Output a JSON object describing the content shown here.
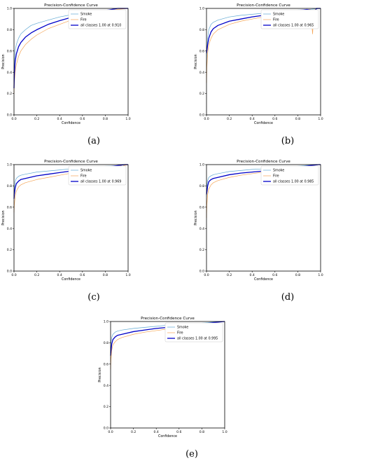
{
  "colors": {
    "smoke": "#5fa8d3",
    "fire": "#f5a455",
    "all": "#0000c8"
  },
  "chart_data": [
    {
      "type": "line",
      "label": "(a)",
      "title": "Precision-Confidence Curve",
      "xlabel": "Confidence",
      "ylabel": "Precision",
      "xlim": [
        0,
        1
      ],
      "ylim": [
        0,
        1
      ],
      "xticks": [
        "0.0",
        "0.2",
        "0.4",
        "0.6",
        "0.8",
        "1.0"
      ],
      "yticks": [
        "0.0",
        "0.2",
        "0.4",
        "0.6",
        "0.8",
        "1.0"
      ],
      "grid": false,
      "legend_position": "top-right",
      "series": [
        {
          "name": "Smoke",
          "color": "#5fa8d3",
          "width": 0.7,
          "x": [
            0,
            0.003,
            0.01,
            0.02,
            0.04,
            0.06,
            0.1,
            0.15,
            0.2,
            0.3,
            0.4,
            0.5,
            0.6,
            0.7,
            0.8,
            0.86,
            0.9,
            1.0
          ],
          "y": [
            0.3,
            0.5,
            0.6,
            0.66,
            0.72,
            0.76,
            0.8,
            0.84,
            0.86,
            0.89,
            0.92,
            0.94,
            0.955,
            0.97,
            0.98,
            0.99,
            1.0,
            1.0
          ]
        },
        {
          "name": "Fire",
          "color": "#f5a455",
          "width": 0.7,
          "x": [
            0,
            0.003,
            0.01,
            0.02,
            0.04,
            0.06,
            0.1,
            0.15,
            0.2,
            0.3,
            0.4,
            0.5,
            0.6,
            0.7,
            0.8,
            0.9,
            1.0
          ],
          "y": [
            0.2,
            0.3,
            0.4,
            0.47,
            0.55,
            0.6,
            0.66,
            0.71,
            0.75,
            0.81,
            0.85,
            0.89,
            0.92,
            0.95,
            0.97,
            0.99,
            1.0
          ]
        },
        {
          "name": "all classes 1.00 at 0.910",
          "color": "#0000c8",
          "width": 1.3,
          "x": [
            0,
            0.003,
            0.01,
            0.02,
            0.04,
            0.06,
            0.1,
            0.15,
            0.2,
            0.3,
            0.4,
            0.5,
            0.6,
            0.7,
            0.8,
            0.91,
            1.0
          ],
          "y": [
            0.25,
            0.38,
            0.5,
            0.57,
            0.64,
            0.68,
            0.73,
            0.77,
            0.8,
            0.85,
            0.885,
            0.915,
            0.94,
            0.96,
            0.98,
            1.0,
            1.0
          ]
        }
      ]
    },
    {
      "type": "line",
      "label": "(b)",
      "title": "Precision-Confidence Curve",
      "xlabel": "Confidence",
      "ylabel": "Precision",
      "xlim": [
        0,
        1
      ],
      "ylim": [
        0,
        1
      ],
      "xticks": [
        "0.0",
        "0.2",
        "0.4",
        "0.6",
        "0.8",
        "1.0"
      ],
      "yticks": [
        "0.0",
        "0.2",
        "0.4",
        "0.6",
        "0.8",
        "1.0"
      ],
      "grid": false,
      "legend_position": "top-right",
      "series": [
        {
          "name": "Smoke",
          "color": "#5fa8d3",
          "width": 0.7,
          "x": [
            0,
            0.003,
            0.01,
            0.02,
            0.04,
            0.06,
            0.1,
            0.2,
            0.3,
            0.4,
            0.5,
            0.6,
            0.7,
            0.8,
            0.9,
            0.95,
            1.0
          ],
          "y": [
            0.4,
            0.6,
            0.72,
            0.8,
            0.85,
            0.87,
            0.89,
            0.92,
            0.935,
            0.945,
            0.955,
            0.965,
            0.975,
            0.985,
            0.99,
            0.995,
            1.0
          ]
        },
        {
          "name": "Fire",
          "color": "#f5a455",
          "width": 0.7,
          "x": [
            0,
            0.003,
            0.01,
            0.02,
            0.04,
            0.06,
            0.1,
            0.2,
            0.3,
            0.4,
            0.5,
            0.6,
            0.7,
            0.8,
            0.88,
            0.91,
            0.92,
            0.93,
            0.94,
            0.95,
            0.97,
            1.0
          ],
          "y": [
            0.3,
            0.45,
            0.58,
            0.66,
            0.72,
            0.76,
            0.8,
            0.85,
            0.88,
            0.9,
            0.92,
            0.94,
            0.955,
            0.975,
            0.99,
            0.99,
            0.88,
            0.76,
            0.97,
            0.99,
            1.0,
            1.0
          ]
        },
        {
          "name": "all classes 1.00 at 0.965",
          "color": "#0000c8",
          "width": 1.3,
          "x": [
            0,
            0.003,
            0.01,
            0.02,
            0.04,
            0.06,
            0.1,
            0.2,
            0.3,
            0.4,
            0.5,
            0.6,
            0.7,
            0.8,
            0.88,
            0.91,
            0.93,
            0.95,
            0.965,
            1.0
          ],
          "y": [
            0.58,
            0.6,
            0.66,
            0.72,
            0.78,
            0.81,
            0.84,
            0.88,
            0.9,
            0.92,
            0.935,
            0.95,
            0.965,
            0.98,
            0.99,
            0.985,
            0.965,
            0.975,
            1.0,
            1.0
          ]
        }
      ]
    },
    {
      "type": "line",
      "label": "(c)",
      "title": "Precision-Confidence Curve",
      "xlabel": "Confidence",
      "ylabel": "Precision",
      "xlim": [
        0,
        1
      ],
      "ylim": [
        0,
        1
      ],
      "xticks": [
        "0.0",
        "0.2",
        "0.4",
        "0.6",
        "0.8",
        "1.0"
      ],
      "yticks": [
        "0.0",
        "0.2",
        "0.4",
        "0.6",
        "0.8",
        "1.0"
      ],
      "grid": false,
      "legend_position": "top-right",
      "series": [
        {
          "name": "Smoke",
          "color": "#5fa8d3",
          "width": 0.7,
          "x": [
            0,
            0.003,
            0.01,
            0.02,
            0.04,
            0.06,
            0.1,
            0.2,
            0.3,
            0.4,
            0.5,
            0.6,
            0.7,
            0.8,
            0.9,
            0.95,
            1.0
          ],
          "y": [
            0.7,
            0.78,
            0.84,
            0.87,
            0.89,
            0.9,
            0.91,
            0.93,
            0.94,
            0.95,
            0.96,
            0.97,
            0.975,
            0.985,
            0.99,
            0.995,
            1.0
          ]
        },
        {
          "name": "Fire",
          "color": "#f5a455",
          "width": 0.7,
          "x": [
            0,
            0.003,
            0.01,
            0.02,
            0.04,
            0.06,
            0.1,
            0.2,
            0.3,
            0.4,
            0.5,
            0.6,
            0.7,
            0.8,
            0.9,
            0.94,
            0.95,
            0.96,
            1.0
          ],
          "y": [
            0.55,
            0.62,
            0.7,
            0.75,
            0.79,
            0.81,
            0.83,
            0.86,
            0.88,
            0.9,
            0.92,
            0.935,
            0.95,
            0.965,
            0.98,
            0.99,
            0.97,
            0.99,
            1.0
          ]
        },
        {
          "name": "all classes 1.00 at 0.969",
          "color": "#0000c8",
          "width": 1.3,
          "x": [
            0,
            0.003,
            0.01,
            0.02,
            0.04,
            0.06,
            0.1,
            0.2,
            0.3,
            0.4,
            0.5,
            0.6,
            0.7,
            0.8,
            0.9,
            0.969,
            1.0
          ],
          "y": [
            0.68,
            0.72,
            0.78,
            0.82,
            0.845,
            0.86,
            0.87,
            0.895,
            0.91,
            0.925,
            0.94,
            0.95,
            0.96,
            0.975,
            0.99,
            1.0,
            1.0
          ]
        }
      ]
    },
    {
      "type": "line",
      "label": "(d)",
      "title": "Precision-Confidence Curve",
      "xlabel": "Confidence",
      "ylabel": "Precision",
      "xlim": [
        0,
        1
      ],
      "ylim": [
        0,
        1
      ],
      "xticks": [
        "0.0",
        "0.2",
        "0.4",
        "0.6",
        "0.8",
        "1.0"
      ],
      "yticks": [
        "0.0",
        "0.2",
        "0.4",
        "0.6",
        "0.8",
        "1.0"
      ],
      "grid": false,
      "legend_position": "top-right",
      "series": [
        {
          "name": "Smoke",
          "color": "#5fa8d3",
          "width": 0.7,
          "x": [
            0,
            0.003,
            0.01,
            0.02,
            0.04,
            0.06,
            0.1,
            0.2,
            0.3,
            0.4,
            0.5,
            0.6,
            0.7,
            0.8,
            0.9,
            0.95,
            1.0
          ],
          "y": [
            0.7,
            0.8,
            0.85,
            0.88,
            0.895,
            0.905,
            0.915,
            0.935,
            0.945,
            0.955,
            0.96,
            0.97,
            0.975,
            0.985,
            0.995,
            1.0,
            1.0
          ]
        },
        {
          "name": "Fire",
          "color": "#f5a455",
          "width": 0.7,
          "x": [
            0,
            0.003,
            0.01,
            0.02,
            0.04,
            0.06,
            0.1,
            0.2,
            0.3,
            0.4,
            0.5,
            0.6,
            0.7,
            0.8,
            0.9,
            0.97,
            1.0
          ],
          "y": [
            0.5,
            0.62,
            0.72,
            0.77,
            0.81,
            0.83,
            0.85,
            0.88,
            0.9,
            0.915,
            0.93,
            0.94,
            0.955,
            0.97,
            0.985,
            1.0,
            1.0
          ]
        },
        {
          "name": "all classes 1.00 at 0.985",
          "color": "#0000c8",
          "width": 1.3,
          "x": [
            0,
            0.003,
            0.01,
            0.02,
            0.04,
            0.06,
            0.1,
            0.2,
            0.3,
            0.4,
            0.5,
            0.6,
            0.7,
            0.8,
            0.9,
            0.985,
            1.0
          ],
          "y": [
            0.72,
            0.74,
            0.8,
            0.84,
            0.86,
            0.87,
            0.88,
            0.905,
            0.92,
            0.93,
            0.94,
            0.955,
            0.965,
            0.975,
            0.99,
            1.0,
            1.0
          ]
        }
      ]
    },
    {
      "type": "line",
      "label": "(e)",
      "title": "Precision-Confidence Curve",
      "xlabel": "Confidence",
      "ylabel": "Precision",
      "xlim": [
        0,
        1
      ],
      "ylim": [
        0,
        1
      ],
      "xticks": [
        "0.0",
        "0.2",
        "0.4",
        "0.6",
        "0.8",
        "1.0"
      ],
      "yticks": [
        "0.0",
        "0.2",
        "0.4",
        "0.6",
        "0.8",
        "1.0"
      ],
      "grid": false,
      "legend_position": "top-right",
      "series": [
        {
          "name": "Smoke",
          "color": "#5fa8d3",
          "width": 0.7,
          "x": [
            0,
            0.003,
            0.01,
            0.02,
            0.04,
            0.06,
            0.1,
            0.2,
            0.3,
            0.4,
            0.5,
            0.6,
            0.7,
            0.8,
            0.9,
            0.95,
            1.0
          ],
          "y": [
            0.7,
            0.8,
            0.85,
            0.88,
            0.9,
            0.91,
            0.92,
            0.935,
            0.945,
            0.955,
            0.965,
            0.97,
            0.98,
            0.985,
            0.995,
            1.0,
            1.0
          ]
        },
        {
          "name": "Fire",
          "color": "#f5a455",
          "width": 0.7,
          "x": [
            0,
            0.003,
            0.01,
            0.02,
            0.04,
            0.06,
            0.1,
            0.2,
            0.3,
            0.4,
            0.5,
            0.6,
            0.7,
            0.8,
            0.9,
            0.97,
            1.0
          ],
          "y": [
            0.55,
            0.64,
            0.73,
            0.78,
            0.81,
            0.83,
            0.85,
            0.88,
            0.9,
            0.915,
            0.93,
            0.945,
            0.955,
            0.97,
            0.985,
            1.0,
            1.0
          ]
        },
        {
          "name": "all classes 1.00 at 0.995",
          "color": "#0000c8",
          "width": 1.3,
          "x": [
            0,
            0.003,
            0.01,
            0.02,
            0.04,
            0.06,
            0.1,
            0.2,
            0.3,
            0.4,
            0.5,
            0.6,
            0.7,
            0.8,
            0.9,
            0.995,
            1.0
          ],
          "y": [
            0.68,
            0.72,
            0.79,
            0.83,
            0.855,
            0.87,
            0.88,
            0.905,
            0.92,
            0.935,
            0.945,
            0.955,
            0.965,
            0.975,
            0.99,
            1.0,
            1.0
          ]
        }
      ]
    }
  ]
}
